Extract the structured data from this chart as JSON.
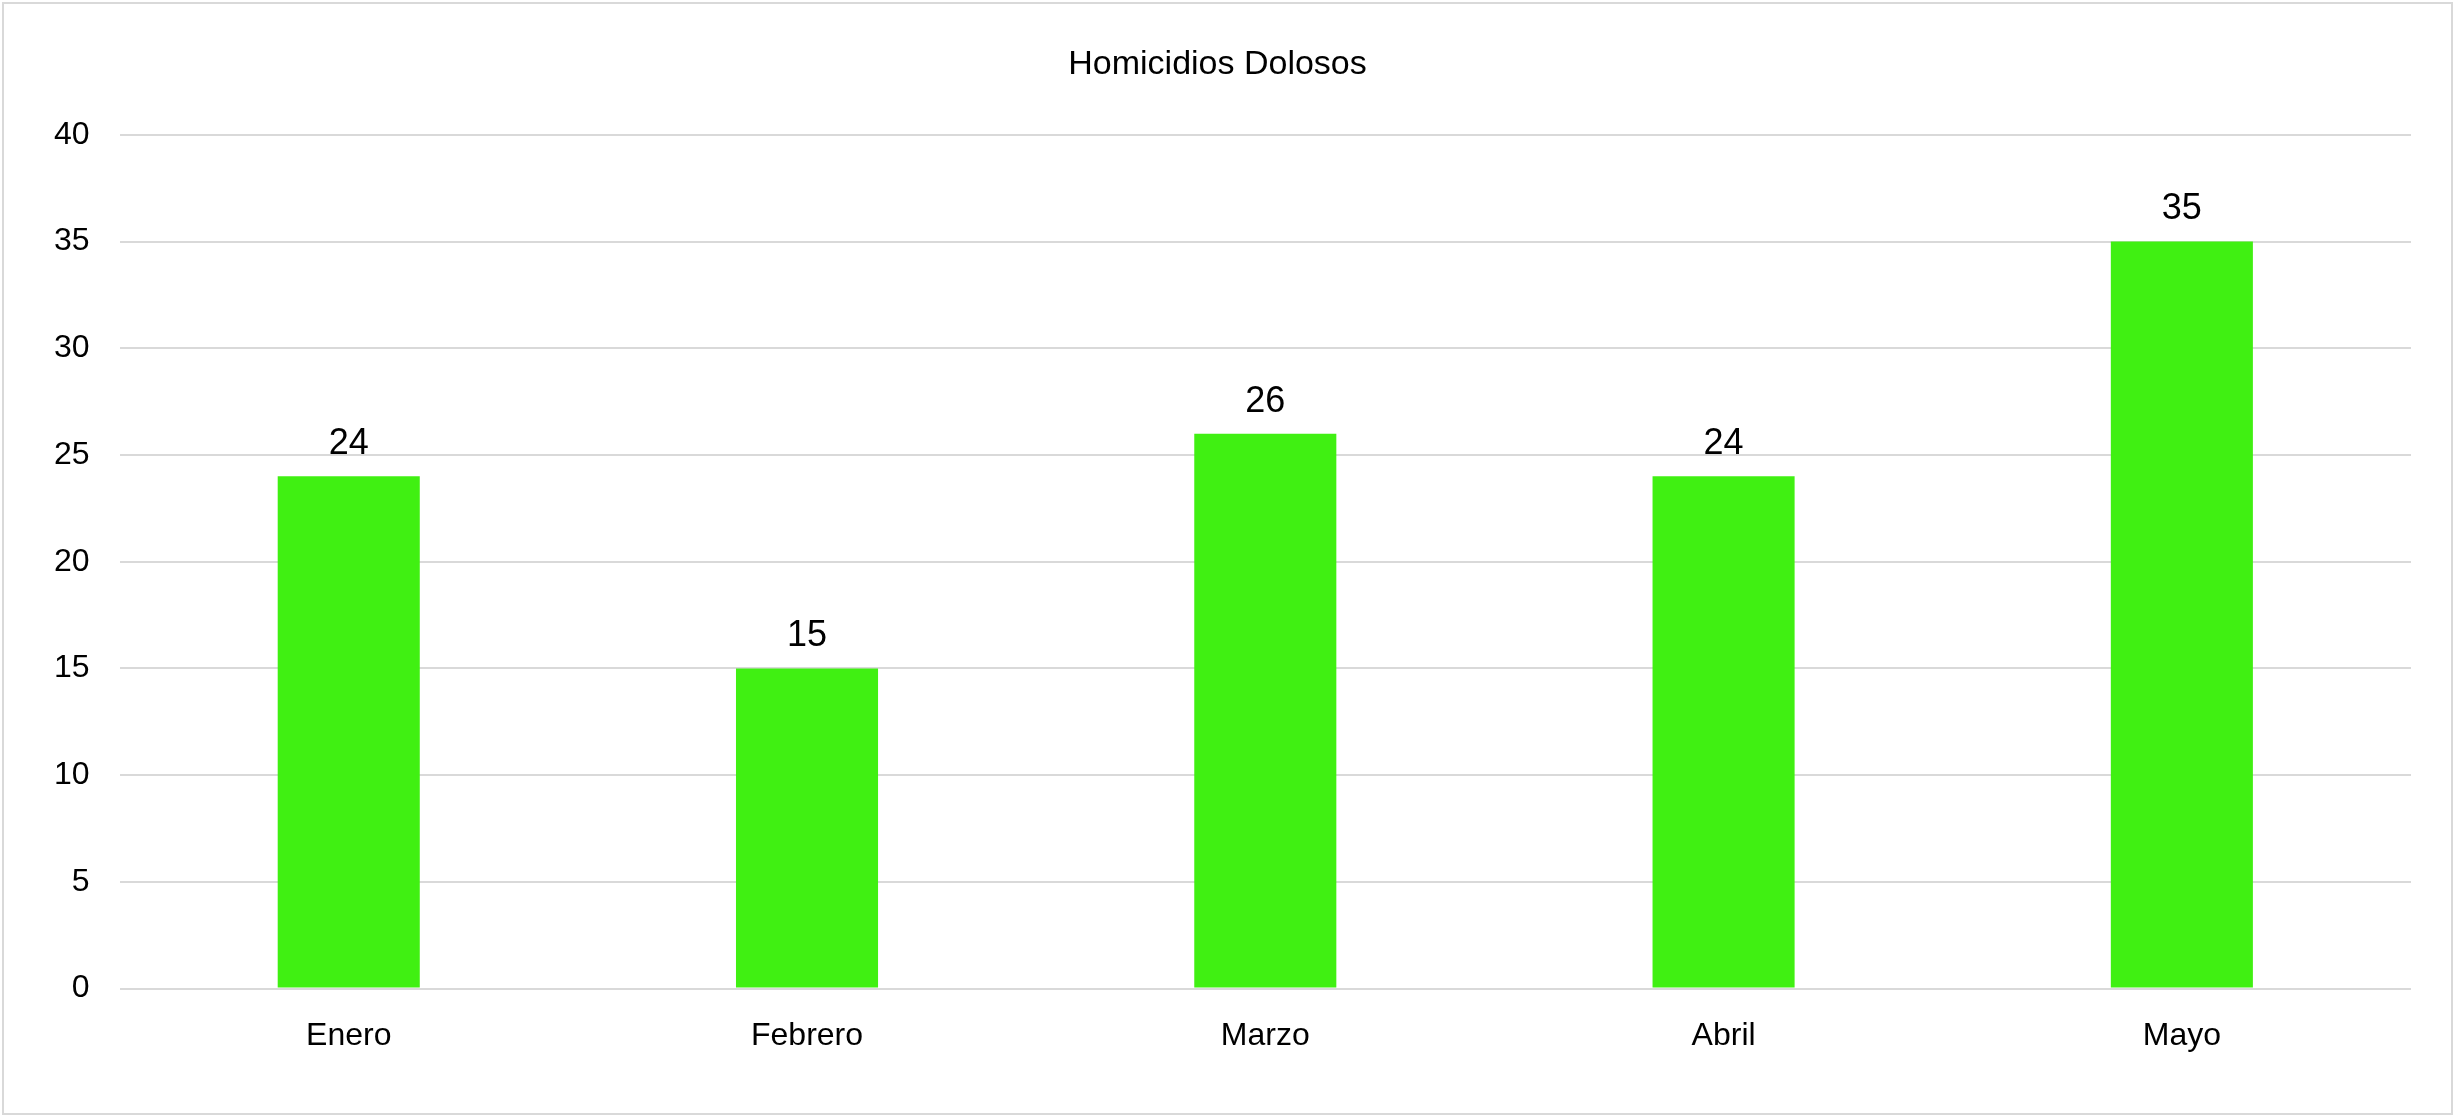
{
  "chart_data": {
    "type": "bar",
    "title": "Homicidios Dolosos",
    "categories": [
      "Enero",
      "Febrero",
      "Marzo",
      "Abril",
      "Mayo"
    ],
    "values": [
      24,
      15,
      26,
      24,
      35
    ],
    "color": "#40f012",
    "ylim": [
      0,
      40
    ],
    "yticks": [
      0,
      5,
      10,
      15,
      20,
      25,
      30,
      35,
      40
    ],
    "grid": "y",
    "data_labels": true
  }
}
